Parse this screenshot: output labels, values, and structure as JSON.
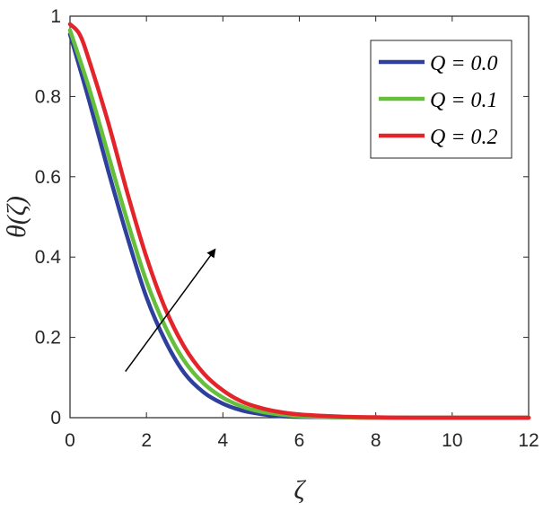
{
  "chart_data": {
    "type": "line",
    "xlabel": "ζ",
    "ylabel": "θ(ζ)",
    "xlim": [
      0,
      12
    ],
    "ylim": [
      0,
      1
    ],
    "xticks": [
      0,
      2,
      4,
      6,
      8,
      10,
      12
    ],
    "xtick_labels": [
      "0",
      "2",
      "4",
      "6",
      "8",
      "10",
      "12"
    ],
    "yticks": [
      0,
      0.2,
      0.4,
      0.6,
      0.8,
      1
    ],
    "ytick_labels": [
      "0",
      "0.2",
      "0.4",
      "0.6",
      "0.8",
      "1"
    ],
    "grid": false,
    "legend_position": "top-right",
    "series": [
      {
        "name": "Q = 0.0",
        "color": "#2E3F9E",
        "x": [
          0,
          0.5,
          1,
          1.5,
          2,
          2.5,
          3,
          3.5,
          4,
          4.5,
          5,
          5.5,
          6,
          7,
          8,
          9,
          10,
          11,
          12
        ],
        "y": [
          0.955,
          0.79,
          0.615,
          0.45,
          0.3,
          0.19,
          0.11,
          0.063,
          0.035,
          0.018,
          0.009,
          0.004,
          0.002,
          0.001,
          0.0,
          0.0,
          0.0,
          0.0,
          0.0
        ]
      },
      {
        "name": "Q = 0.1",
        "color": "#66BF3B",
        "x": [
          0,
          0.5,
          1,
          1.5,
          2,
          2.5,
          3,
          3.5,
          4,
          4.5,
          5,
          5.5,
          6,
          7,
          8,
          9,
          10,
          11,
          12
        ],
        "y": [
          0.965,
          0.82,
          0.655,
          0.49,
          0.34,
          0.225,
          0.14,
          0.085,
          0.05,
          0.028,
          0.015,
          0.008,
          0.004,
          0.001,
          0.0,
          0.0,
          0.0,
          0.0,
          0.0
        ]
      },
      {
        "name": "Q = 0.2",
        "color": "#E3242B",
        "x": [
          0,
          0.25,
          0.5,
          1,
          1.5,
          2,
          2.5,
          3,
          3.5,
          4,
          4.5,
          5,
          5.5,
          6,
          7,
          8,
          9,
          10,
          11,
          12
        ],
        "y": [
          0.98,
          0.955,
          0.89,
          0.735,
          0.56,
          0.4,
          0.27,
          0.175,
          0.11,
          0.068,
          0.04,
          0.024,
          0.014,
          0.008,
          0.003,
          0.001,
          0.0,
          0.0,
          0.0,
          0.0
        ]
      }
    ],
    "annotation": {
      "type": "arrow",
      "from": [
        1.45,
        0.115
      ],
      "to": [
        3.8,
        0.42
      ],
      "color": "#000000"
    }
  }
}
